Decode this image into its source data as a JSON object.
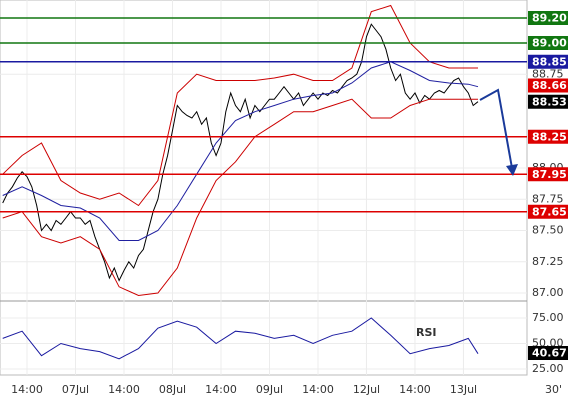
{
  "chart_data": [
    {
      "type": "line",
      "timeframe": "30'",
      "xlim": [
        -0.567,
        108.1
      ],
      "ylim": [
        86.944,
        89.344
      ],
      "xticks": [
        {
          "value": 5,
          "label": "14:00"
        },
        {
          "value": 15,
          "label": "07Jul"
        },
        {
          "value": 25,
          "label": "14:00"
        },
        {
          "value": 35,
          "label": "08Jul"
        },
        {
          "value": 45,
          "label": "14:00"
        },
        {
          "value": 55,
          "label": "09Jul"
        },
        {
          "value": 65,
          "label": "14:00"
        },
        {
          "value": 75,
          "label": "12Jul"
        },
        {
          "value": 85,
          "label": "14:00"
        },
        {
          "value": 95,
          "label": "13Jul"
        }
      ],
      "yticks": [
        {
          "value": 87,
          "label": "87.00"
        },
        87.25,
        {
          "value": 87.5,
          "label": "87.50"
        },
        87.75,
        {
          "value": 88,
          "label": "88.00"
        },
        88.75
      ],
      "grid": true,
      "series": [
        {
          "color": "#000000",
          "values": [
            87.72,
            87.8,
            87.85,
            87.92,
            87.97,
            87.93,
            87.85,
            87.7,
            87.5,
            87.55,
            87.5,
            87.58,
            87.55,
            87.6,
            87.65,
            87.6,
            87.6,
            87.55,
            87.58,
            87.45,
            87.35,
            87.25,
            87.12,
            87.2,
            87.1,
            87.18,
            87.25,
            87.2,
            87.3,
            87.35,
            87.5,
            87.65,
            87.75,
            87.95,
            88.1,
            88.3,
            88.5,
            88.45,
            88.42,
            88.4,
            88.45,
            88.35,
            88.4,
            88.2,
            88.1,
            88.2,
            88.45,
            88.6,
            88.5,
            88.45,
            88.55,
            88.4,
            88.5,
            88.45,
            88.5,
            88.55,
            88.55,
            88.6,
            88.65,
            88.6,
            88.55,
            88.6,
            88.5,
            88.55,
            88.6,
            88.55,
            88.6,
            88.58,
            88.62,
            88.6,
            88.65,
            88.7,
            88.72,
            88.75,
            88.85,
            89.05,
            89.15,
            89.1,
            89.05,
            88.95,
            88.8,
            88.7,
            88.75,
            88.6,
            88.55,
            88.6,
            88.52,
            88.58,
            88.55,
            88.6,
            88.62,
            88.6,
            88.65,
            88.7,
            88.72,
            88.65,
            88.6,
            88.5,
            88.53
          ]
        },
        {
          "color": "#2020a0",
          "x": [
            0,
            4,
            8,
            12,
            16,
            20,
            24,
            28,
            32,
            36,
            40,
            44,
            48,
            52,
            56,
            60,
            64,
            68,
            72,
            76,
            80,
            84,
            88,
            92,
            96,
            98
          ],
          "values": [
            87.78,
            87.85,
            87.78,
            87.7,
            87.68,
            87.6,
            87.42,
            87.42,
            87.5,
            87.7,
            87.95,
            88.2,
            88.38,
            88.45,
            88.5,
            88.55,
            88.58,
            88.6,
            88.68,
            88.8,
            88.85,
            88.78,
            88.7,
            88.68,
            88.67,
            88.65
          ]
        },
        {
          "color": "#cc0000",
          "x": [
            0,
            4,
            8,
            12,
            16,
            20,
            24,
            28,
            32,
            36,
            40,
            44,
            48,
            52,
            56,
            60,
            64,
            68,
            72,
            76,
            80,
            84,
            88,
            92,
            96,
            98
          ],
          "values": [
            87.95,
            88.1,
            88.2,
            87.9,
            87.8,
            87.75,
            87.8,
            87.7,
            87.9,
            88.6,
            88.75,
            88.7,
            88.7,
            88.7,
            88.72,
            88.75,
            88.7,
            88.7,
            88.8,
            89.25,
            89.3,
            89.0,
            88.85,
            88.8,
            88.8,
            88.8
          ]
        },
        {
          "color": "#cc0000",
          "x": [
            0,
            4,
            8,
            12,
            16,
            20,
            24,
            28,
            32,
            36,
            40,
            44,
            48,
            52,
            56,
            60,
            64,
            68,
            72,
            76,
            80,
            84,
            88,
            92,
            96,
            98
          ],
          "values": [
            87.6,
            87.65,
            87.45,
            87.4,
            87.45,
            87.35,
            87.05,
            86.98,
            87.0,
            87.2,
            87.6,
            87.9,
            88.05,
            88.25,
            88.35,
            88.45,
            88.45,
            88.5,
            88.55,
            88.4,
            88.4,
            88.5,
            88.55,
            88.55,
            88.55,
            88.55
          ]
        }
      ],
      "levels": [
        {
          "value": 89.2,
          "label": "89.20",
          "color": "#117711"
        },
        {
          "value": 89.0,
          "label": "89.00",
          "color": "#117711"
        },
        {
          "value": 88.85,
          "label": "88.85",
          "color": "#1a1aa0"
        },
        {
          "value": 88.25,
          "label": "88.25",
          "color": "#dd0000"
        },
        {
          "value": 87.95,
          "label": "87.95",
          "color": "#dd0000"
        },
        {
          "value": 87.65,
          "label": "87.65",
          "color": "#dd0000"
        }
      ],
      "markers": [
        {
          "value": 88.66,
          "label": "88.66",
          "color": "#dd0000"
        },
        {
          "value": 88.53,
          "label": "88.53",
          "color": "#000000"
        }
      ]
    },
    {
      "type": "line",
      "annotation": "RSI",
      "xlim": [
        -0.567,
        108.1
      ],
      "ylim": [
        19.1,
        89.7
      ],
      "yticks": [
        {
          "value": 25,
          "label": "25.00"
        },
        {
          "value": 50,
          "label": "50.00"
        },
        {
          "value": 75,
          "label": "75.00"
        }
      ],
      "series": [
        {
          "color": "#1a1aa0",
          "x": [
            0,
            4,
            8,
            12,
            16,
            20,
            24,
            28,
            32,
            36,
            40,
            44,
            48,
            52,
            56,
            60,
            64,
            68,
            72,
            76,
            80,
            84,
            88,
            92,
            96,
            98
          ],
          "values": [
            55,
            62,
            38,
            50,
            45,
            42,
            35,
            45,
            65,
            72,
            66,
            50,
            62,
            60,
            55,
            58,
            50,
            58,
            62,
            75,
            58,
            40,
            45,
            48,
            55,
            40
          ]
        }
      ],
      "markers": [
        {
          "value": 40.67,
          "label": "40.67",
          "color": "#000000"
        }
      ]
    }
  ]
}
